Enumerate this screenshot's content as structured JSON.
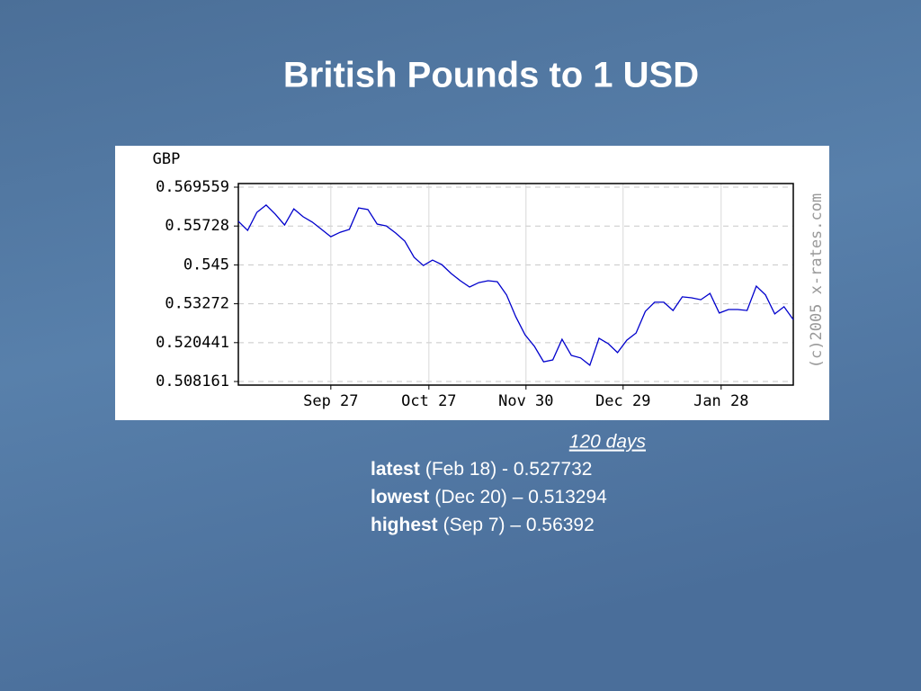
{
  "chart_data": {
    "type": "line",
    "title": "British Pounds to 1 USD",
    "y_label": "GBP",
    "watermark": "(c)2005 x-rates.com",
    "x": [
      0,
      2,
      4,
      6,
      8,
      10,
      12,
      14,
      16,
      18,
      20,
      22,
      24,
      26,
      28,
      30,
      32,
      34,
      36,
      38,
      40,
      42,
      44,
      46,
      48,
      50,
      52,
      54,
      56,
      58,
      60,
      62,
      64,
      66,
      68,
      70,
      72,
      74,
      76,
      78,
      80,
      82,
      84,
      86,
      88,
      90,
      92,
      94,
      96,
      98,
      100,
      102,
      104,
      106,
      108,
      110,
      112,
      114,
      116,
      118,
      120
    ],
    "values": [
      0.5588,
      0.5559,
      0.5616,
      0.5639,
      0.561,
      0.5576,
      0.5627,
      0.5602,
      0.5585,
      0.5562,
      0.5539,
      0.5553,
      0.5562,
      0.563,
      0.5625,
      0.5579,
      0.5573,
      0.5551,
      0.5525,
      0.5474,
      0.5448,
      0.5465,
      0.5451,
      0.5423,
      0.54,
      0.538,
      0.5394,
      0.54,
      0.5397,
      0.5355,
      0.5286,
      0.5229,
      0.5193,
      0.5144,
      0.515,
      0.5215,
      0.5164,
      0.5156,
      0.5133,
      0.5218,
      0.5201,
      0.5173,
      0.5212,
      0.5235,
      0.5303,
      0.5332,
      0.5332,
      0.5306,
      0.5349,
      0.5346,
      0.534,
      0.536,
      0.5298,
      0.5309,
      0.5309,
      0.5306,
      0.5383,
      0.5355,
      0.5295,
      0.5318,
      0.5277
    ],
    "color": "#0000cc",
    "xlim": [
      0,
      120
    ],
    "xticks": [
      {
        "value": 20,
        "label": "Sep 27"
      },
      {
        "value": 41.2,
        "label": "Oct 27"
      },
      {
        "value": 62.2,
        "label": "Nov 30"
      },
      {
        "value": 83.2,
        "label": "Dec 29"
      },
      {
        "value": 104.4,
        "label": "Jan 28"
      }
    ],
    "ylim": [
      0.50703,
      0.5707
    ],
    "yticks": [
      0.508161,
      0.520441,
      0.53272,
      0.545,
      0.55728,
      0.569559
    ],
    "grid": true
  },
  "notes": {
    "period": "120 days",
    "lines": [
      {
        "label": "latest",
        "text": "(Feb 18) - 0.527732"
      },
      {
        "label": "lowest",
        "text": "(Dec 20) – 0.513294"
      },
      {
        "label": "highest",
        "text": "(Sep 7) – 0.56392"
      }
    ]
  }
}
